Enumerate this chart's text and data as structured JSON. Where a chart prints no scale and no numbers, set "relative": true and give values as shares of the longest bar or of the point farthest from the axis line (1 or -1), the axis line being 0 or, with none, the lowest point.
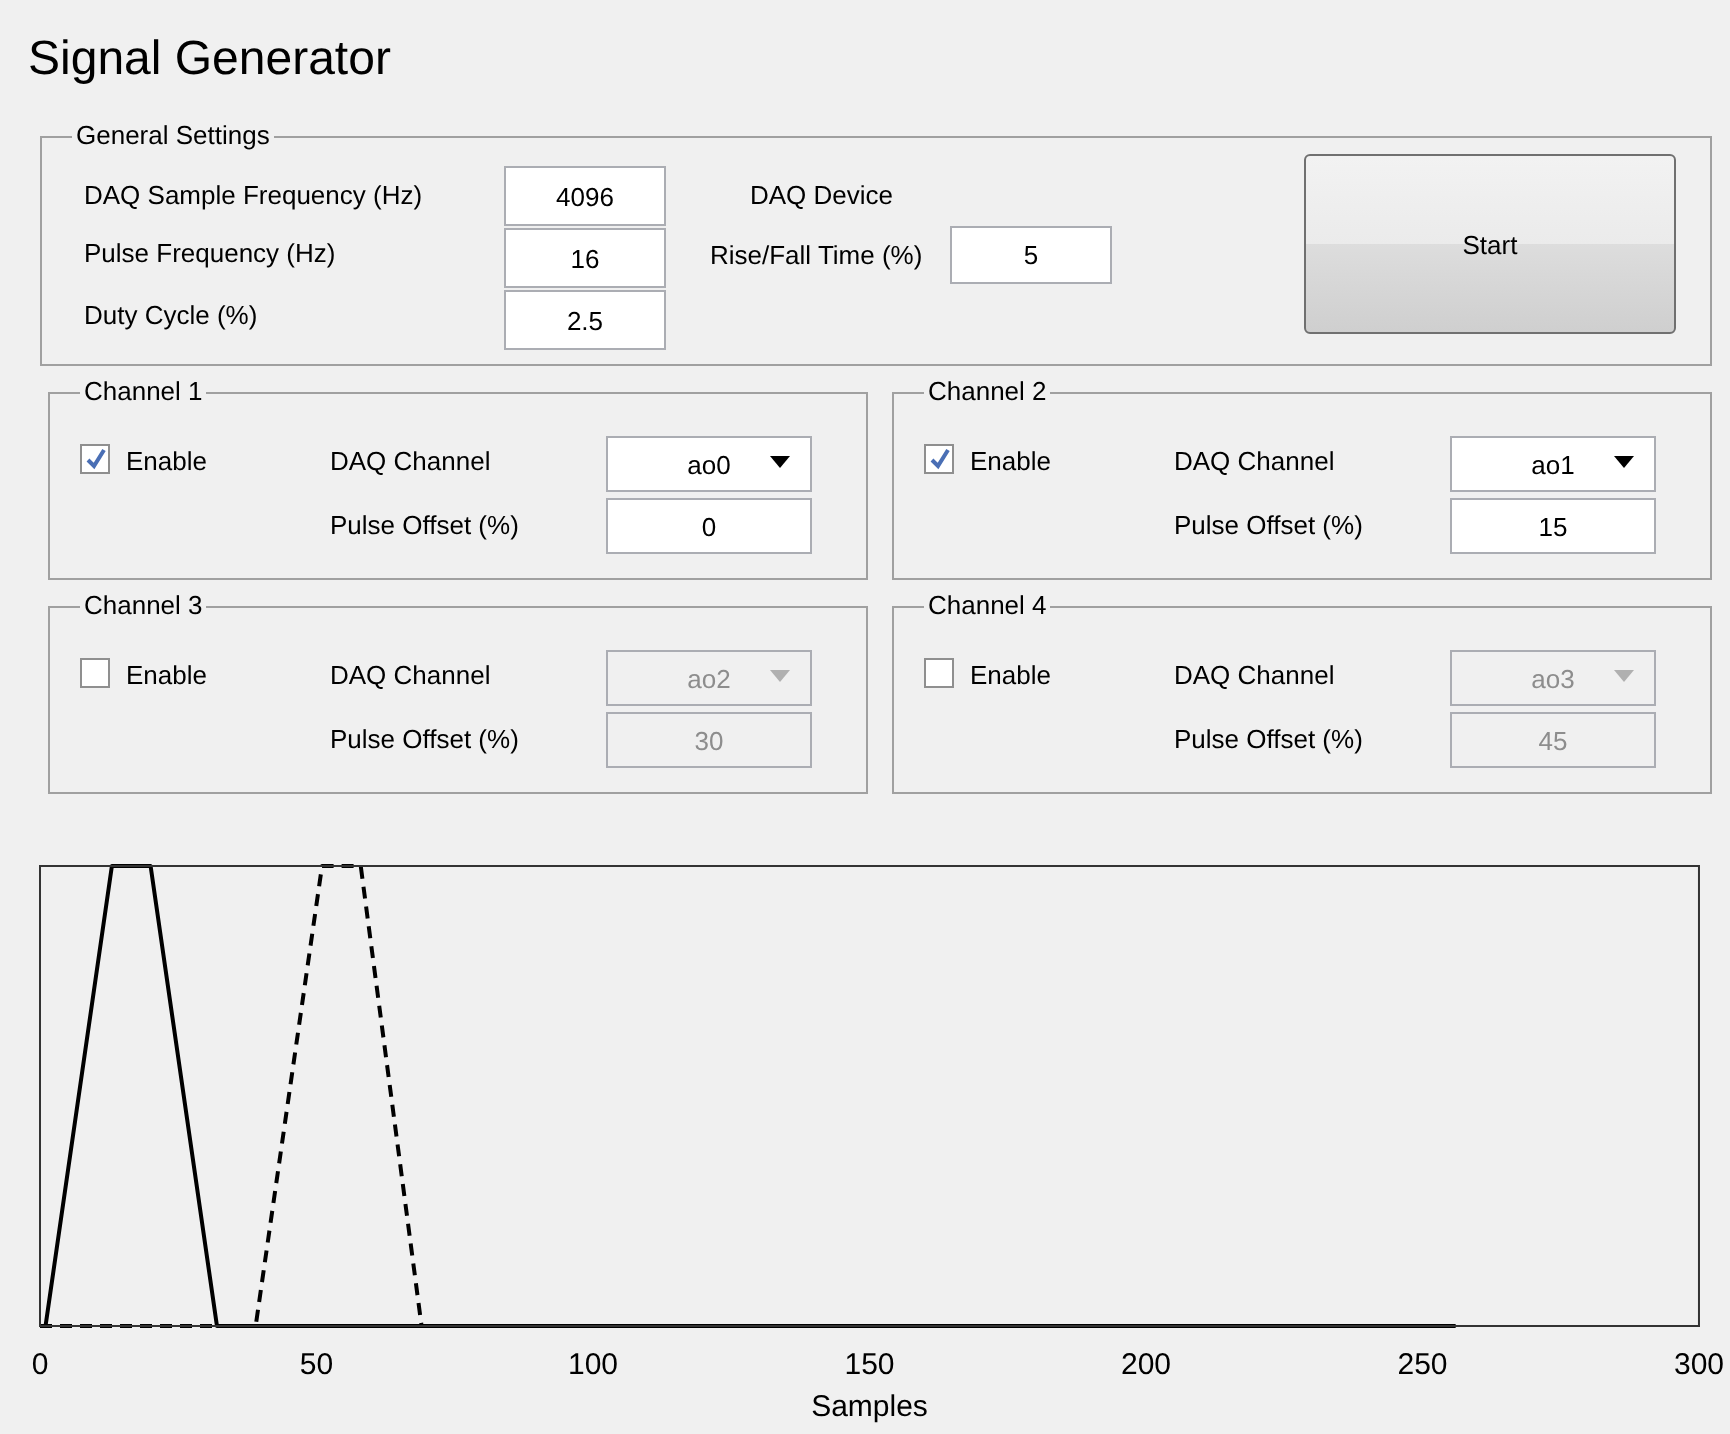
{
  "chart_data": [
    {
      "type": "other",
      "title": "Signal Generator",
      "annotations": [
        "General Settings",
        "DAQ Sample Frequency (Hz)",
        "4096",
        "Pulse Frequency (Hz)",
        "16",
        "Duty Cycle (%)",
        "2.5",
        "DAQ Device",
        "Rise/Fall Time (%)",
        "5",
        "Start",
        "Channel 1",
        "Enable",
        "DAQ Channel",
        "ao0",
        "Pulse Offset (%)",
        "0",
        "Channel 2",
        "Enable",
        "DAQ Channel",
        "ao1",
        "Pulse Offset (%)",
        "15",
        "Channel 3",
        "Enable",
        "DAQ Channel",
        "ao2",
        "Pulse Offset (%)",
        "30",
        "Channel 4",
        "Enable",
        "DAQ Channel",
        "ao3",
        "Pulse Offset (%)",
        "45"
      ]
    },
    {
      "type": "line",
      "xlabel": "Samples",
      "xlim": [
        0,
        300
      ],
      "xticks": [
        0,
        50,
        100,
        150,
        200,
        250,
        300
      ],
      "relative": true,
      "grid": false,
      "legend": false,
      "marker": "none",
      "series": [
        {
          "color": "#000000",
          "line_style": "solid",
          "x": [
            0,
            1,
            13,
            20,
            32,
            256
          ],
          "values": [
            0,
            0,
            1,
            1,
            0,
            0
          ]
        },
        {
          "color": "#000000",
          "line_style": "dashed",
          "x": [
            0,
            39,
            51,
            58,
            69,
            256
          ],
          "values": [
            0,
            0,
            1,
            1,
            0,
            0
          ]
        }
      ]
    }
  ]
}
